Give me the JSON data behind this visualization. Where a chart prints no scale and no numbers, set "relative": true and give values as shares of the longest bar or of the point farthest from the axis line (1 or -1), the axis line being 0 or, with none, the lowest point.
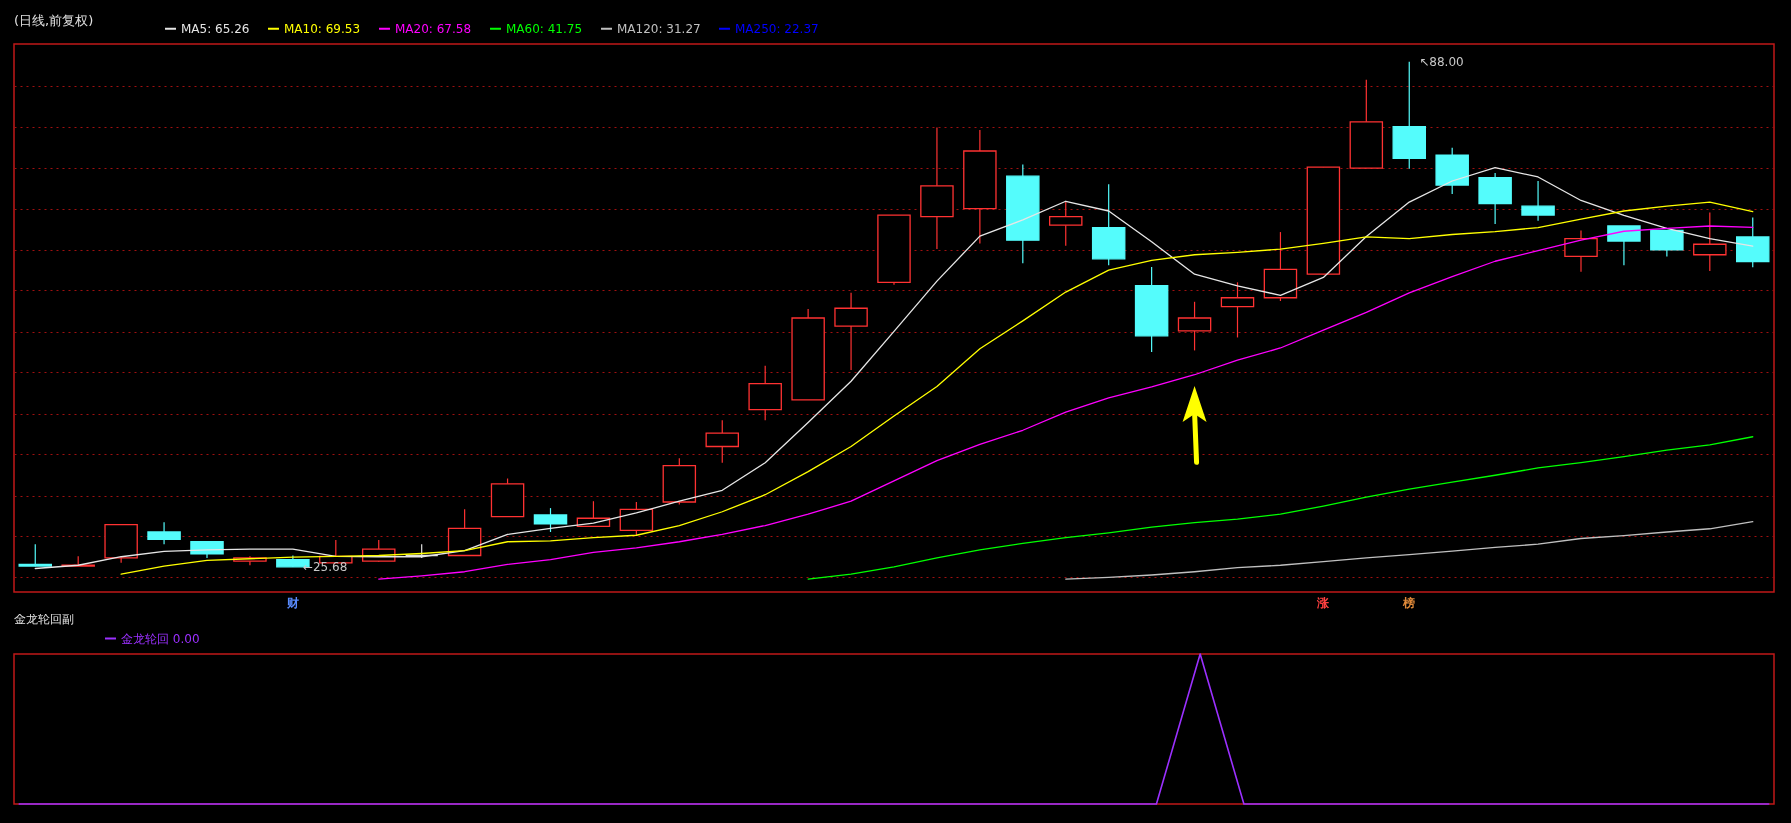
{
  "chart_data": [
    {
      "type": "candlestick",
      "title": "(日线,前复权)",
      "categories": [
        null,
        null,
        null,
        null,
        null,
        null,
        null,
        null,
        null,
        null,
        null,
        null,
        null,
        null,
        null,
        null,
        null,
        null,
        null,
        null,
        null,
        null,
        null,
        null,
        null,
        null,
        null,
        null,
        null,
        null,
        null,
        null,
        null,
        null,
        null,
        null,
        null,
        null,
        null,
        null,
        null
      ],
      "ohlc": [
        [
          26.0,
          28.5,
          25.75,
          25.8
        ],
        [
          25.8,
          27.0,
          25.8,
          25.9
        ],
        [
          26.8,
          30.9,
          26.2,
          30.9
        ],
        [
          30.0,
          31.2,
          28.5,
          29.1
        ],
        [
          28.8,
          28.8,
          26.8,
          27.3
        ],
        [
          26.4,
          27.0,
          25.9,
          26.8
        ],
        [
          26.6,
          27.1,
          25.68,
          25.7
        ],
        [
          26.2,
          29.0,
          26.2,
          27.0
        ],
        [
          26.4,
          29.0,
          26.3,
          27.9
        ],
        [
          27.1,
          28.5,
          26.8,
          27.1
        ],
        [
          27.1,
          32.8,
          27.1,
          30.45
        ],
        [
          31.9,
          36.6,
          31.9,
          35.95
        ],
        [
          32.1,
          32.95,
          30.0,
          31.0
        ],
        [
          30.7,
          33.8,
          30.7,
          31.7
        ],
        [
          30.2,
          33.7,
          29.6,
          32.8
        ],
        [
          33.7,
          39.1,
          33.4,
          38.2
        ],
        [
          40.55,
          43.8,
          38.55,
          42.2
        ],
        [
          45.1,
          50.5,
          43.8,
          48.3
        ],
        [
          46.3,
          57.5,
          46.3,
          56.4
        ],
        [
          55.4,
          59.5,
          50.0,
          57.6
        ],
        [
          60.8,
          69.1,
          60.5,
          69.1
        ],
        [
          68.9,
          79.9,
          64.9,
          72.7
        ],
        [
          69.9,
          79.6,
          65.6,
          77.0
        ],
        [
          73.9,
          75.35,
          63.15,
          66.0
        ],
        [
          67.85,
          70.7,
          65.3,
          68.9
        ],
        [
          67.55,
          72.9,
          62.9,
          63.7
        ],
        [
          60.4,
          62.7,
          52.2,
          54.2
        ],
        [
          54.8,
          58.4,
          52.4,
          56.4
        ],
        [
          57.8,
          60.8,
          54.0,
          58.9
        ],
        [
          58.9,
          67.0,
          58.5,
          62.4
        ],
        [
          61.8,
          75.0,
          61.8,
          75.0
        ],
        [
          74.9,
          85.8,
          74.9,
          80.6
        ],
        [
          80.0,
          88.0,
          74.8,
          76.1
        ],
        [
          76.5,
          77.4,
          71.7,
          72.8
        ],
        [
          73.7,
          74.3,
          68.0,
          70.5
        ],
        [
          70.2,
          73.3,
          68.4,
          69.1
        ],
        [
          64.0,
          67.2,
          62.1,
          66.2
        ],
        [
          67.75,
          67.75,
          62.9,
          65.9
        ],
        [
          67.2,
          67.2,
          64.0,
          64.8
        ],
        [
          64.2,
          69.4,
          62.2,
          65.5
        ],
        [
          66.4,
          68.8,
          62.65,
          63.35
        ]
      ],
      "colors": [
        "#54fcfc",
        "#ff3232",
        "#ff3232",
        "#54fcfc",
        "#54fcfc",
        "#ff3232",
        "#54fcfc",
        "#ff3232",
        "#ff3232",
        "#e0e0e0",
        "#ff3232",
        "#ff3232",
        "#54fcfc",
        "#ff3232",
        "#ff3232",
        "#ff3232",
        "#ff3232",
        "#ff3232",
        "#ff3232",
        "#ff3232",
        "#ff3232",
        "#ff3232",
        "#ff3232",
        "#54fcfc",
        "#ff3232",
        "#54fcfc",
        "#54fcfc",
        "#ff3232",
        "#ff3232",
        "#ff3232",
        "#ff3232",
        "#ff3232",
        "#54fcfc",
        "#54fcfc",
        "#54fcfc",
        "#54fcfc",
        "#ff3232",
        "#54fcfc",
        "#54fcfc",
        "#ff3232",
        "#54fcfc"
      ],
      "series": [
        {
          "name": "MA5: 65.26",
          "type": "line",
          "color": "#e6e6e6",
          "values": [
            25.5,
            25.9,
            26.95,
            27.6,
            27.8,
            27.9,
            27.9,
            27.0,
            26.95,
            26.95,
            27.7,
            29.7,
            30.45,
            31.1,
            32.35,
            33.8,
            35.15,
            38.55,
            43.5,
            48.6,
            54.75,
            60.95,
            66.5,
            68.5,
            70.8,
            69.6,
            65.8,
            61.8,
            60.35,
            59.2,
            61.4,
            66.45,
            70.7,
            73.3,
            74.95,
            73.8,
            70.9,
            69.05,
            67.45,
            66.2,
            65.26
          ]
        },
        {
          "name": "MA10: 69.53",
          "type": "line",
          "color": "#ffff00",
          "values": [
            null,
            null,
            24.8,
            25.8,
            26.5,
            26.7,
            26.9,
            27.0,
            27.1,
            27.35,
            27.7,
            28.8,
            28.9,
            29.3,
            29.6,
            30.8,
            32.5,
            34.6,
            37.45,
            40.55,
            44.3,
            47.95,
            52.6,
            56.05,
            59.6,
            62.3,
            63.5,
            64.2,
            64.5,
            64.9,
            65.6,
            66.4,
            66.2,
            66.7,
            67.05,
            67.55,
            68.6,
            69.6,
            70.2,
            70.7,
            69.53
          ]
        },
        {
          "name": "MA20: 67.58",
          "type": "line",
          "color": "#ff00ff",
          "values": [
            null,
            null,
            null,
            null,
            null,
            null,
            null,
            null,
            24.2,
            24.6,
            25.1,
            26.0,
            26.6,
            27.5,
            28.05,
            28.8,
            29.7,
            30.8,
            32.2,
            33.8,
            36.3,
            38.8,
            40.8,
            42.55,
            44.8,
            46.55,
            47.9,
            49.4,
            51.2,
            52.7,
            54.9,
            57.1,
            59.5,
            61.5,
            63.4,
            64.7,
            66.0,
            67.1,
            67.45,
            67.75,
            67.58
          ]
        },
        {
          "name": "MA60: 41.75",
          "type": "line",
          "color": "#00ff00",
          "values": [
            null,
            null,
            null,
            null,
            null,
            null,
            null,
            null,
            null,
            null,
            null,
            null,
            null,
            null,
            null,
            null,
            null,
            null,
            24.2,
            24.8,
            25.7,
            26.8,
            27.8,
            28.6,
            29.3,
            29.9,
            30.6,
            31.15,
            31.6,
            32.2,
            33.2,
            34.3,
            35.3,
            36.15,
            37.0,
            37.9,
            38.55,
            39.3,
            40.1,
            40.75,
            41.75
          ]
        },
        {
          "name": "MA120: 31.27",
          "type": "line",
          "color": "#c0c0c0",
          "values": [
            null,
            null,
            null,
            null,
            null,
            null,
            null,
            null,
            null,
            null,
            null,
            null,
            null,
            null,
            null,
            null,
            null,
            null,
            null,
            null,
            null,
            null,
            null,
            null,
            24.2,
            24.4,
            24.7,
            25.1,
            25.6,
            25.9,
            26.35,
            26.8,
            27.2,
            27.65,
            28.1,
            28.5,
            29.2,
            29.55,
            30.0,
            30.4,
            31.27
          ]
        },
        {
          "name": "MA250: 22.37",
          "type": "line",
          "color": "#0000ff",
          "values": [
            null,
            null,
            null,
            null,
            null,
            null,
            null,
            null,
            null,
            null,
            null,
            null,
            null,
            null,
            null,
            null,
            null,
            null,
            null,
            null,
            null,
            null,
            null,
            null,
            null,
            null,
            null,
            null,
            null,
            null,
            null,
            null,
            null,
            null,
            null,
            null,
            null,
            null,
            null,
            null,
            null
          ]
        }
      ],
      "ylim": [
        22.6,
        90.2
      ],
      "yticks": [
        {
          "value": 85.0,
          "label": null
        },
        {
          "value": 80.0,
          "label": null
        },
        {
          "value": 74.9,
          "label": null
        },
        {
          "value": 69.9,
          "label": null
        },
        {
          "value": 64.8,
          "label": null
        },
        {
          "value": 59.8,
          "label": null
        },
        {
          "value": 54.7,
          "label": null
        },
        {
          "value": 49.7,
          "label": null
        },
        {
          "value": 44.6,
          "label": null
        },
        {
          "value": 39.6,
          "label": null
        },
        {
          "value": 34.5,
          "label": null
        },
        {
          "value": 29.5,
          "label": null
        },
        {
          "value": 24.5,
          "label": null
        }
      ],
      "grid": "y",
      "tick_labels": false,
      "legend": "top left",
      "annotations": [
        {
          "text": "←25.68",
          "y": 25.68
        },
        "↖88.00",
        "财",
        "涨",
        "榜"
      ]
    },
    {
      "type": "line",
      "title": "金龙轮回副",
      "categories": [
        null,
        null,
        null,
        null,
        null,
        null,
        null,
        null,
        null,
        null,
        null,
        null,
        null,
        null,
        null,
        null,
        null,
        null,
        null,
        null,
        null,
        null,
        null,
        null,
        null,
        null,
        null,
        null,
        null,
        null,
        null,
        null,
        null,
        null,
        null,
        null,
        null,
        null,
        null,
        null,
        null
      ],
      "relative": true,
      "legend": "top left",
      "series": [
        {
          "name": "金龙轮回 0.00",
          "color": "#9b30ff",
          "values": [
            0,
            0,
            0,
            0,
            0,
            0,
            0,
            0,
            0,
            0,
            0,
            0,
            0,
            0,
            0,
            0,
            0,
            0,
            0,
            0,
            0,
            0,
            0,
            0,
            0,
            0,
            0,
            1,
            0,
            0,
            0,
            0,
            0,
            0,
            0,
            0,
            0,
            0,
            0,
            0,
            0
          ]
        }
      ]
    }
  ]
}
